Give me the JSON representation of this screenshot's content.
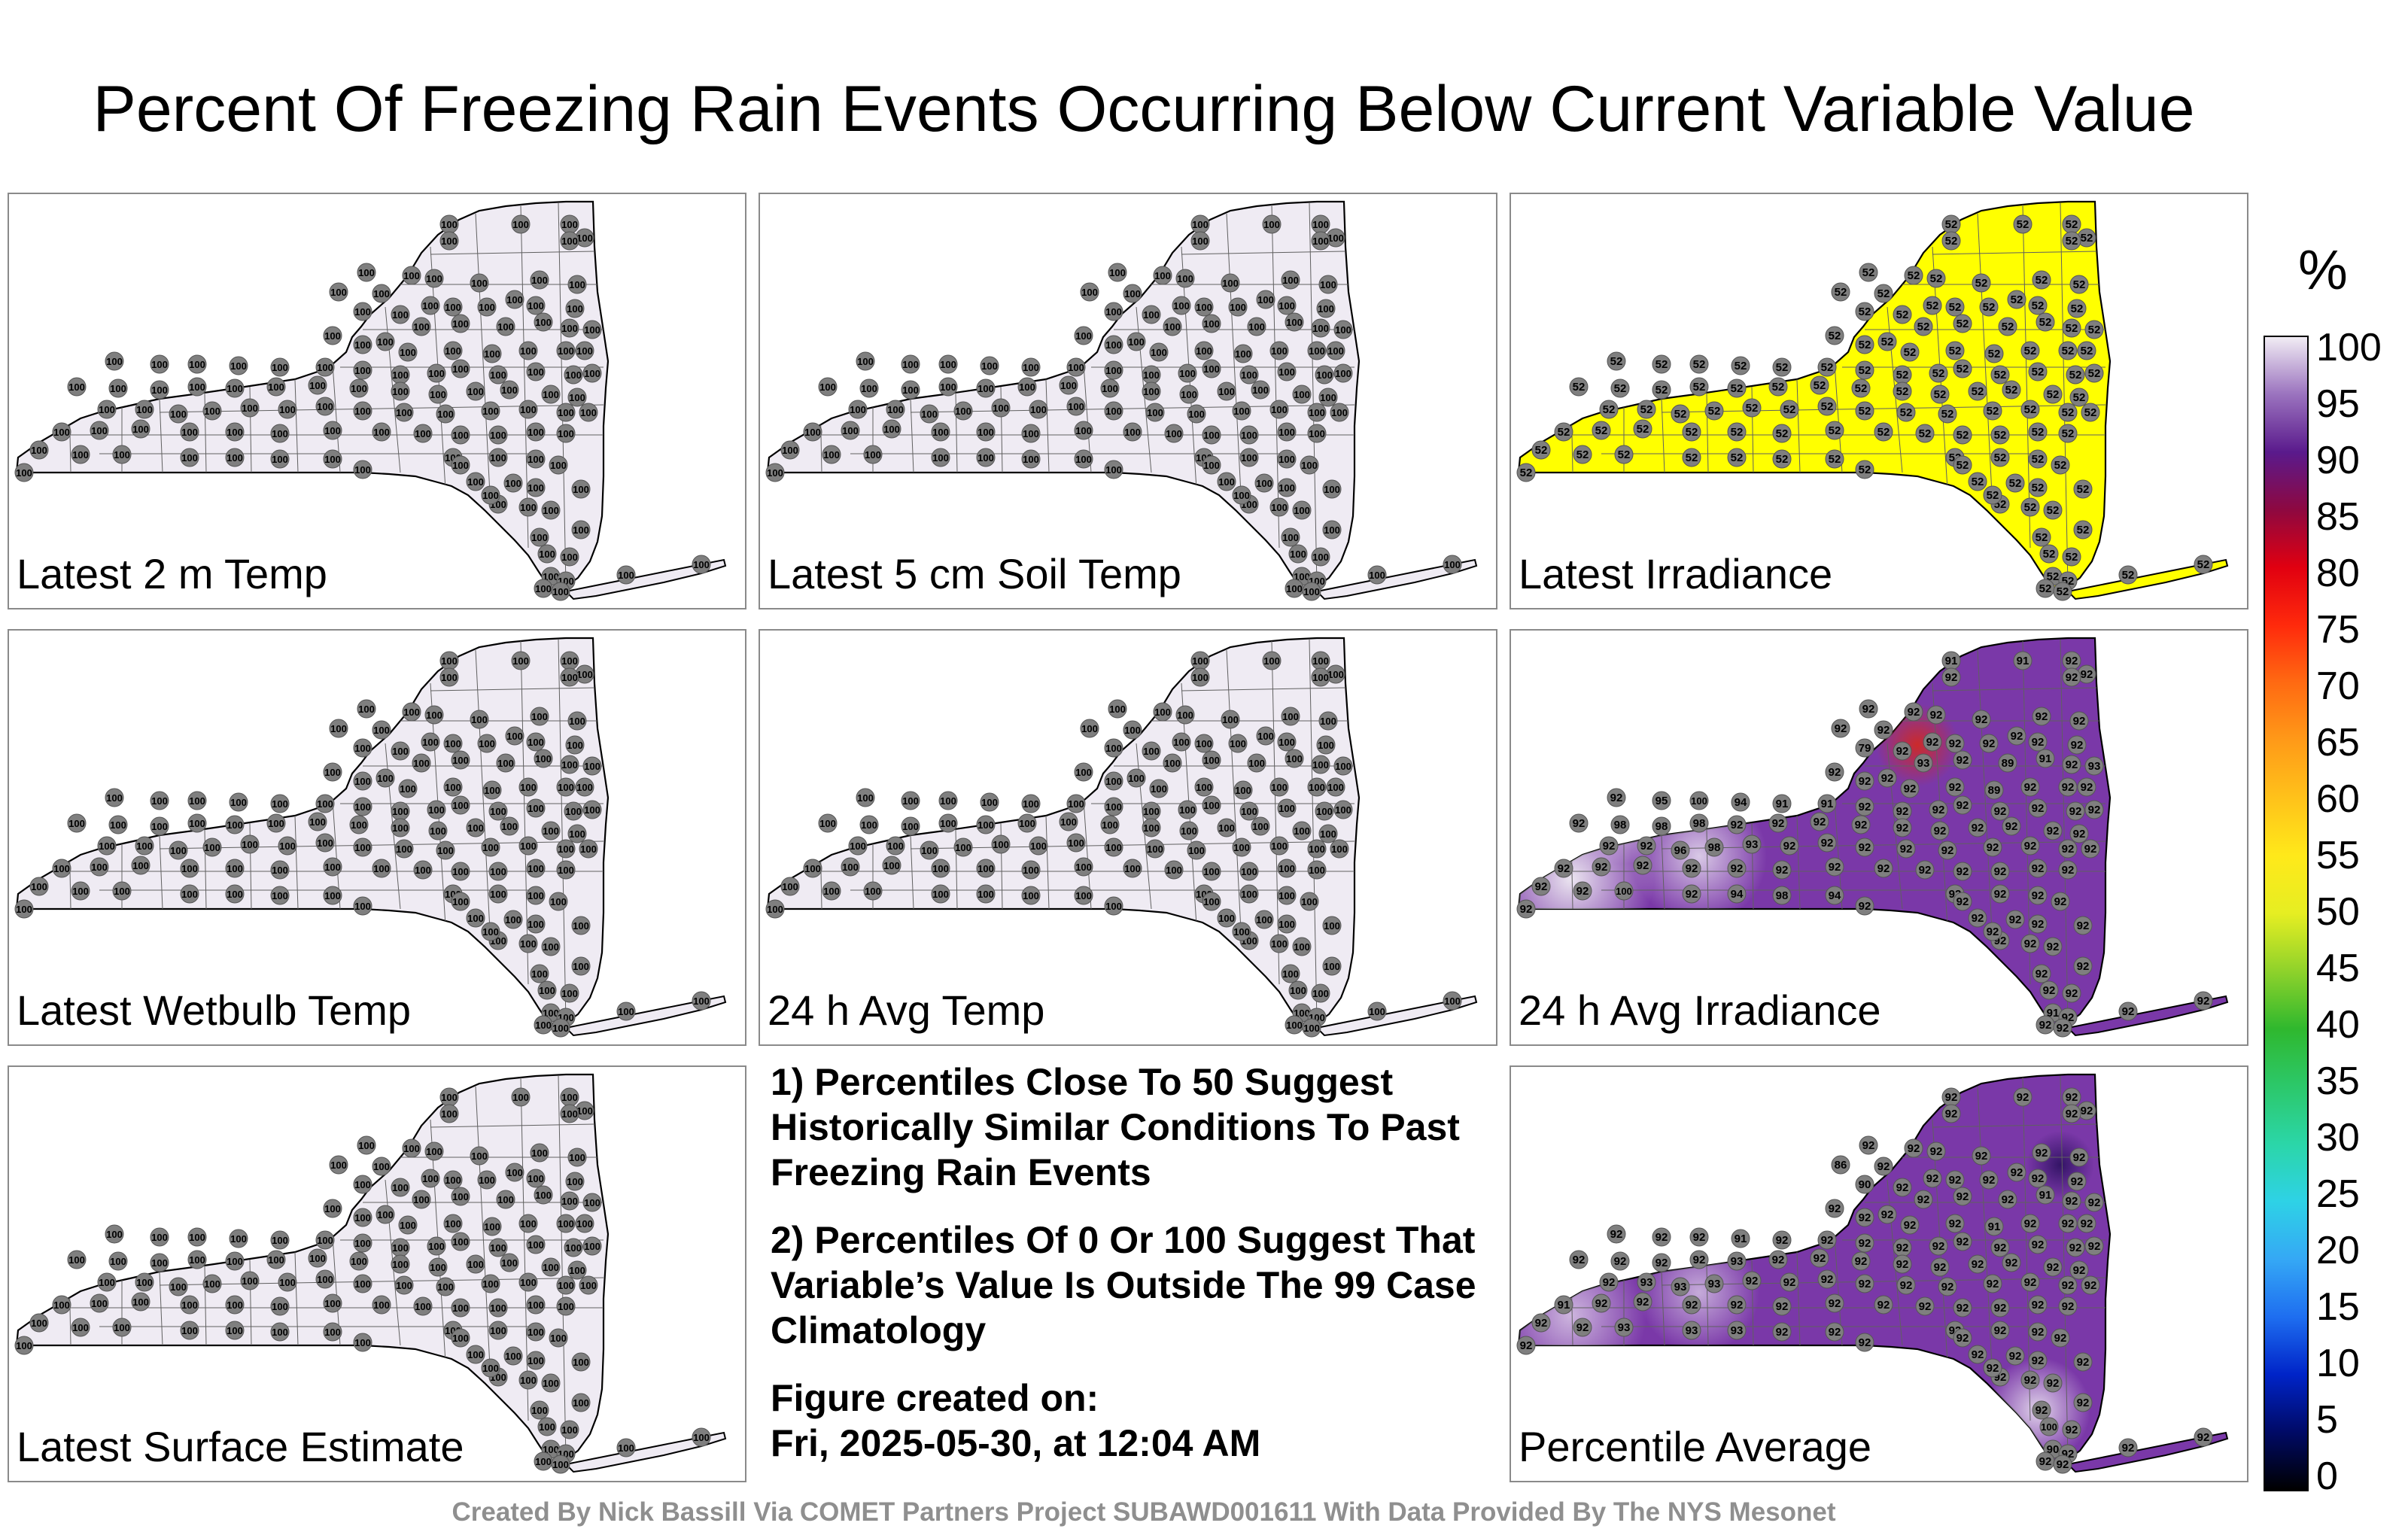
{
  "title": "Percent Of Freezing Rain Events Occurring Below Current Variable Value",
  "panels": [
    {
      "label": "Latest 2 m Temp",
      "fill": "#efebf3",
      "value": 100,
      "pos": "r1c1"
    },
    {
      "label": "Latest 5 cm Soil Temp",
      "fill": "#efebf3",
      "value": 100,
      "pos": "r1c2"
    },
    {
      "label": "Latest Irradiance",
      "fill": "#ffff00",
      "value": 52,
      "pos": "r1c3"
    },
    {
      "label": "Latest Wetbulb Temp",
      "fill": "#efebf3",
      "value": 100,
      "pos": "r2c1"
    },
    {
      "label": "24 h Avg Temp",
      "fill": "#efebf3",
      "value": 100,
      "pos": "r2c2"
    },
    {
      "label": "24 h Avg Irradiance",
      "fill": "#7a38a8",
      "value": 92,
      "pos": "r2c3"
    },
    {
      "label": "Latest Surface Estimate",
      "fill": "#efebf3",
      "value": 100,
      "pos": "r3c1"
    },
    {
      "label": "Percentile Average",
      "fill": "#7a38a8",
      "value": 92,
      "pos": "r3c3"
    }
  ],
  "notes": {
    "note1": "1) Percentiles Close To 50 Suggest Historically Similar Conditions To Past Freezing Rain Events",
    "note2": "2) Percentiles Of 0 Or 100 Suggest That Variable’s Value Is Outside The 99 Case Climatology",
    "created_label": "Figure created on:",
    "created_date": "Fri, 2025-05-30, at 12:04 AM"
  },
  "footer": "Created By Nick Bassill Via COMET Partners Project SUBAWD001611 With Data Provided By The NYS Mesonet",
  "colorbar": {
    "unit": "%",
    "ticks": [
      "100",
      "95",
      "90",
      "85",
      "80",
      "75",
      "70",
      "65",
      "60",
      "55",
      "50",
      "45",
      "40",
      "35",
      "30",
      "25",
      "20",
      "15",
      "10",
      "5",
      "0"
    ]
  }
}
